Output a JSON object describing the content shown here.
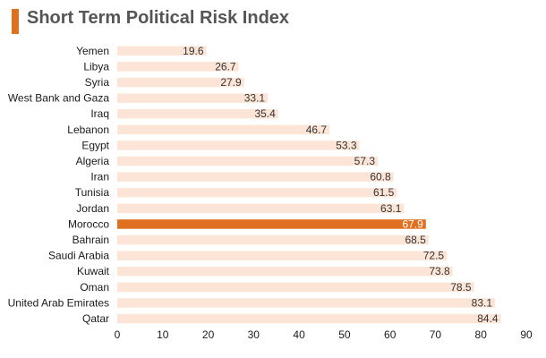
{
  "chart_data": {
    "type": "bar",
    "orientation": "horizontal",
    "title": "Short Term Political Risk Index",
    "categories": [
      "Yemen",
      "Libya",
      "Syria",
      "West Bank and Gaza",
      "Iraq",
      "Lebanon",
      "Egypt",
      "Algeria",
      "Iran",
      "Tunisia",
      "Jordan",
      "Morocco",
      "Bahrain",
      "Saudi Arabia",
      "Kuwait",
      "Oman",
      "United Arab Emirates",
      "Qatar"
    ],
    "values": [
      19.6,
      26.7,
      27.9,
      33.1,
      35.4,
      46.7,
      53.3,
      57.3,
      60.8,
      61.5,
      63.1,
      67.9,
      68.5,
      72.5,
      73.8,
      78.5,
      83.1,
      84.4
    ],
    "value_labels": [
      "19.6",
      "26.7",
      "27.9",
      "33.1",
      "35.4",
      "46.7",
      "53.3",
      "57.3",
      "60.8",
      "61.5",
      "63.1",
      "67.9",
      "68.5",
      "72.5",
      "73.8",
      "78.5",
      "83.1",
      "84.4"
    ],
    "highlight": "Morocco",
    "xlim": [
      0,
      90
    ],
    "xticks": [
      0,
      10,
      20,
      30,
      40,
      50,
      60,
      70,
      80,
      90
    ],
    "xlabel": "",
    "ylabel": "",
    "grid": false,
    "legend": "none"
  },
  "colors": {
    "accent": "#e0701f",
    "bar": "#fce5d6",
    "highlight": "#e0701f"
  }
}
